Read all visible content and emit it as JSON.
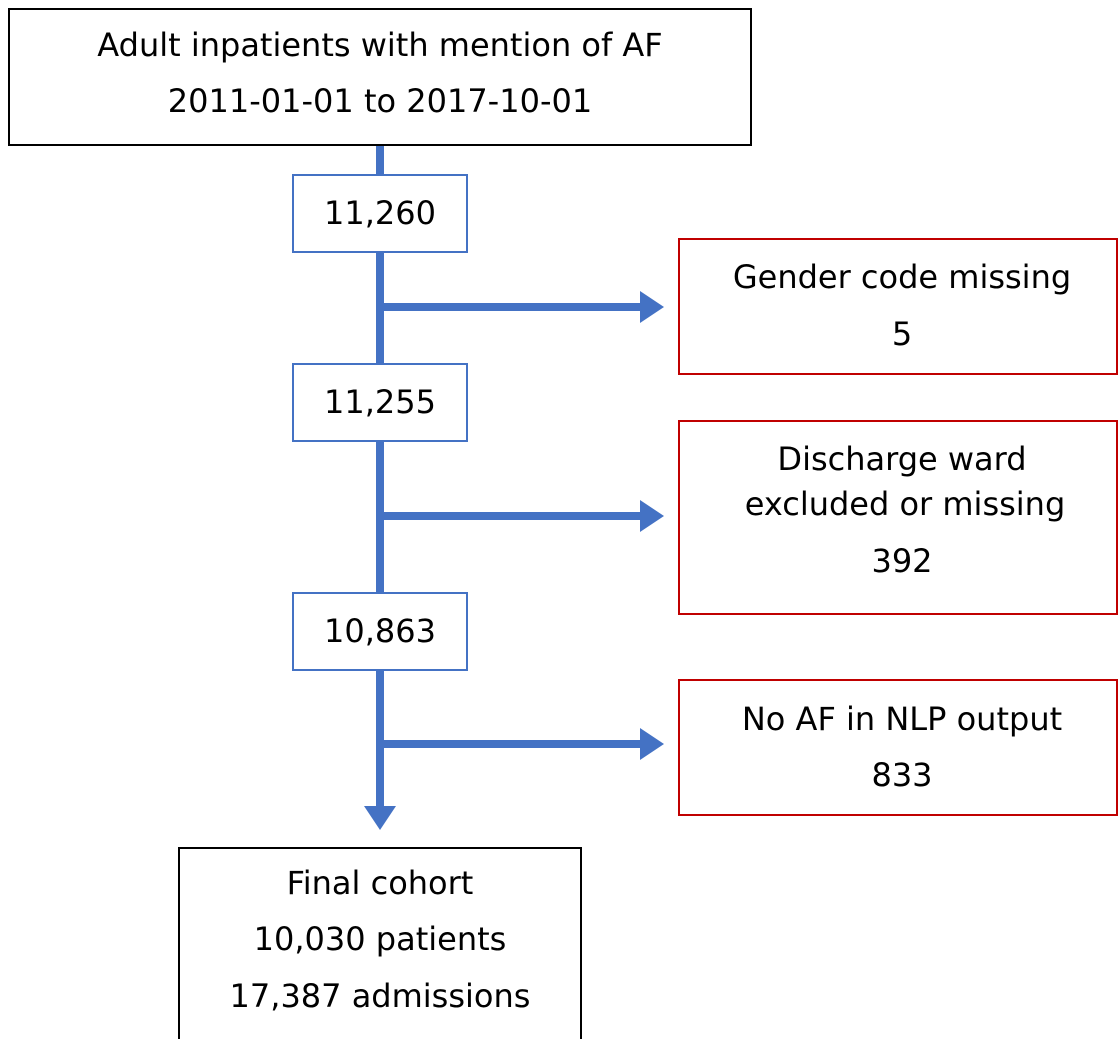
{
  "start": {
    "lines": [
      "Adult inpatients with mention of AF",
      "2011-01-01 to 2017-10-01"
    ]
  },
  "counts": [
    "11,260",
    "11,255",
    "10,863"
  ],
  "exclusions": [
    {
      "lines": [
        "Gender code missing",
        "5"
      ]
    },
    {
      "lines": [
        "Discharge ward",
        "excluded or missing",
        "392"
      ]
    },
    {
      "lines": [
        "No AF in NLP output",
        "833"
      ]
    }
  ],
  "final": {
    "lines": [
      "Final cohort",
      "10,030 patients",
      "17,387 admissions"
    ]
  }
}
